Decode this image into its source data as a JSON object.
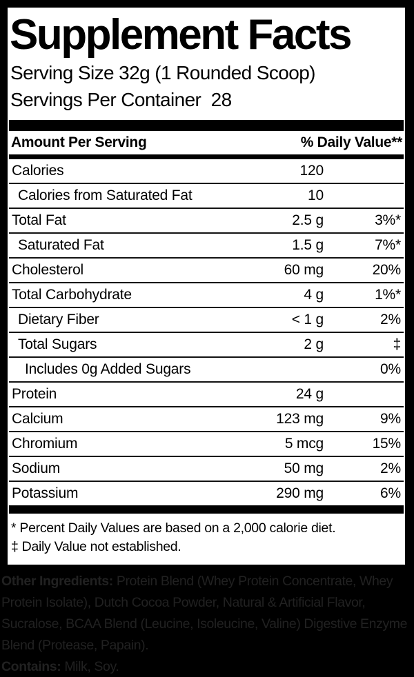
{
  "label": {
    "title": "Supplement Facts",
    "serving_size": "Serving Size 32g (1 Rounded Scoop)",
    "servings_per_container": "Servings Per Container  28",
    "columns": {
      "amount_header": "Amount Per Serving",
      "dv_header": "% Daily Value**"
    },
    "rows": [
      {
        "label": "Calories",
        "amount": "120",
        "dv": "",
        "indent": 0
      },
      {
        "label": "Calories from Saturated Fat",
        "amount": "10",
        "dv": "",
        "indent": 1
      },
      {
        "label": "Total Fat",
        "amount": "2.5 g",
        "dv": "3%*",
        "indent": 0
      },
      {
        "label": "Saturated Fat",
        "amount": "1.5 g",
        "dv": "7%*",
        "indent": 1
      },
      {
        "label": "Cholesterol",
        "amount": "60 mg",
        "dv": "20%",
        "indent": 0
      },
      {
        "label": "Total Carbohydrate",
        "amount": "4 g",
        "dv": "1%*",
        "indent": 0
      },
      {
        "label": "Dietary Fiber",
        "amount": "< 1 g",
        "dv": "2%",
        "indent": 1
      },
      {
        "label": "Total Sugars",
        "amount": "2 g",
        "dv": "‡",
        "indent": 1
      },
      {
        "label": "Includes 0g Added Sugars",
        "amount": "",
        "dv": "0%",
        "indent": 2
      },
      {
        "label": "Protein",
        "amount": "24 g",
        "dv": "",
        "indent": 0
      },
      {
        "label": "Calcium",
        "amount": "123 mg",
        "dv": "9%",
        "indent": 0
      },
      {
        "label": "Chromium",
        "amount": "5 mcg",
        "dv": "15%",
        "indent": 0
      },
      {
        "label": "Sodium",
        "amount": "50 mg",
        "dv": "2%",
        "indent": 0
      },
      {
        "label": "Potassium",
        "amount": "290 mg",
        "dv": "6%",
        "indent": 0
      }
    ],
    "footnotes": [
      "* Percent Daily Values are based on a 2,000 calorie diet.",
      "‡ Daily Value not established."
    ]
  },
  "ingredients": {
    "other_label": "Other Ingredients:",
    "other_text": " Protein Blend (Whey Protein Concentrate, Whey Protein Isolate), Dutch Cocoa Powder, Natural & Artificial Flavor, Sucralose, BCAA Blend (Leucine, Isoleucine, Valine) Digestive Enzyme Blend (Protease, Papain).",
    "contains_label": "Contains:",
    "contains_text": " Milk, Soy."
  },
  "colors": {
    "frame_bg": "#000000",
    "panel_bg": "#ffffff",
    "rule_color": "#111111",
    "ingredients_text": "#212121"
  }
}
